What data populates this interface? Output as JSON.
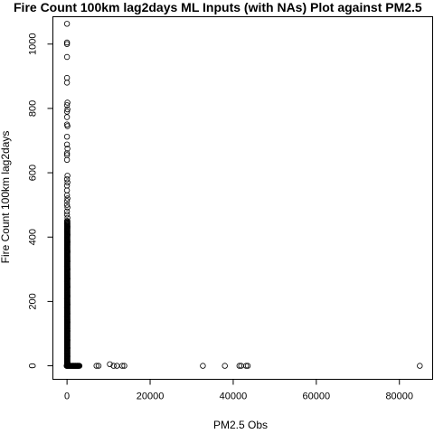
{
  "chart_data": {
    "type": "scatter",
    "title": "Fire Count 100km lag2days ML Inputs (with NAs) Plot against PM2.5",
    "xlabel": "PM2.5 Obs",
    "ylabel": "Fire Count 100km lag2days",
    "xlim": [
      -3400,
      88000
    ],
    "ylim": [
      -42,
      1085
    ],
    "xticks": [
      0,
      20000,
      40000,
      60000,
      80000
    ],
    "yticks": [
      0,
      200,
      400,
      600,
      800,
      1000
    ],
    "xtick_labels": [
      "0",
      "20000",
      "40000",
      "60000",
      "80000"
    ],
    "ytick_labels": [
      "0",
      "200",
      "400",
      "600",
      "800",
      "1000"
    ],
    "grid": false,
    "marker": "open-circle",
    "zero_band_x": [
      -100,
      3000
    ],
    "cluster_y_by_x": [
      [
        0,
        1063
      ],
      [
        0,
        1005
      ],
      [
        0,
        1000
      ],
      [
        0,
        960
      ],
      [
        0,
        895
      ],
      [
        0,
        880
      ],
      [
        100,
        818
      ],
      [
        0,
        810
      ],
      [
        100,
        797
      ],
      [
        0,
        790
      ],
      [
        0,
        773
      ],
      [
        0,
        750
      ],
      [
        100,
        745
      ],
      [
        0,
        712
      ],
      [
        0,
        688
      ],
      [
        100,
        675
      ],
      [
        0,
        661
      ],
      [
        0,
        655
      ],
      [
        0,
        640
      ],
      [
        100,
        591
      ],
      [
        0,
        580
      ],
      [
        100,
        570
      ],
      [
        0,
        560
      ],
      [
        0,
        545
      ],
      [
        0,
        530
      ],
      [
        100,
        520
      ],
      [
        0,
        512
      ],
      [
        0,
        500
      ],
      [
        100,
        492
      ],
      [
        0,
        480
      ],
      [
        0,
        470
      ],
      [
        100,
        460
      ],
      [
        0,
        450
      ],
      [
        0,
        440
      ],
      [
        100,
        432
      ],
      [
        0,
        425
      ],
      [
        0,
        418
      ],
      [
        100,
        408
      ],
      [
        0,
        400
      ],
      [
        0,
        392
      ],
      [
        100,
        385
      ],
      [
        0,
        375
      ],
      [
        0,
        365
      ],
      [
        100,
        355
      ],
      [
        0,
        345
      ],
      [
        0,
        335
      ],
      [
        100,
        325
      ],
      [
        0,
        318
      ],
      [
        0,
        308
      ],
      [
        100,
        300
      ],
      [
        0,
        290
      ],
      [
        0,
        280
      ],
      [
        100,
        270
      ],
      [
        0,
        262
      ],
      [
        0,
        252
      ],
      [
        100,
        244
      ],
      [
        0,
        235
      ],
      [
        0,
        226
      ],
      [
        100,
        216
      ],
      [
        0,
        208
      ],
      [
        0,
        198
      ],
      [
        100,
        190
      ],
      [
        0,
        180
      ],
      [
        0,
        172
      ],
      [
        100,
        162
      ],
      [
        0,
        152
      ],
      [
        0,
        144
      ],
      [
        100,
        135
      ],
      [
        0,
        126
      ],
      [
        0,
        116
      ],
      [
        100,
        108
      ],
      [
        0,
        98
      ],
      [
        0,
        90
      ],
      [
        100,
        80
      ],
      [
        0,
        72
      ],
      [
        0,
        63
      ],
      [
        100,
        55
      ],
      [
        0,
        46
      ],
      [
        0,
        38
      ],
      [
        100,
        30
      ],
      [
        0,
        22
      ],
      [
        0,
        15
      ],
      [
        100,
        8
      ],
      [
        0,
        3
      ]
    ],
    "outliers": [
      [
        1500,
        0
      ],
      [
        2000,
        0
      ],
      [
        2500,
        0
      ],
      [
        7100,
        0
      ],
      [
        7600,
        0
      ],
      [
        10300,
        5
      ],
      [
        11200,
        0
      ],
      [
        12000,
        0
      ],
      [
        13300,
        0
      ],
      [
        13800,
        0
      ],
      [
        32700,
        0
      ],
      [
        38000,
        0
      ],
      [
        41500,
        0
      ],
      [
        41900,
        0
      ],
      [
        43100,
        0
      ],
      [
        43500,
        0
      ],
      [
        84900,
        0
      ]
    ]
  }
}
